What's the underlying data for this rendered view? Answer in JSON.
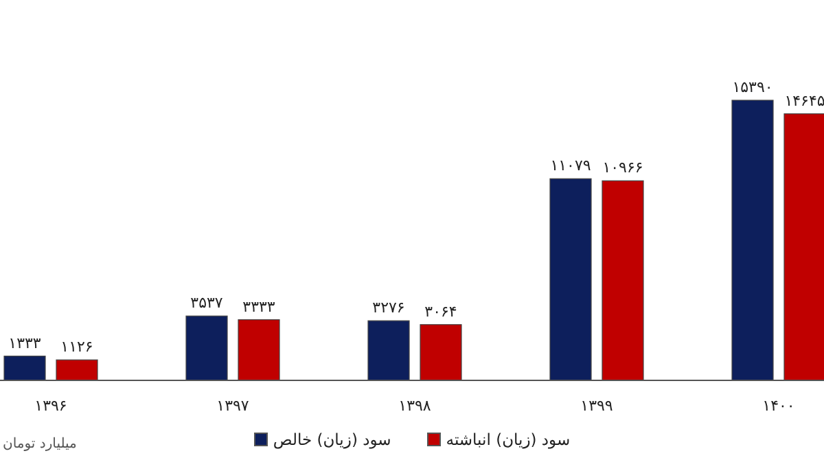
{
  "chart_data": {
    "type": "bar",
    "categories": [
      "۱۳۹۶",
      "۱۳۹۷",
      "۱۳۹۸",
      "۱۳۹۹",
      "۱۴۰۰"
    ],
    "series": [
      {
        "name": "سود (زیان) خالص",
        "color": "#0d1f5c",
        "values": [
          1333,
          3537,
          3276,
          11079,
          15390
        ],
        "value_labels": [
          "۱۳۳۳",
          "۳۵۳۷",
          "۳۲۷۶",
          "۱۱۰۷۹",
          "۱۵۳۹۰"
        ]
      },
      {
        "name": "سود (زیان) انباشته",
        "color": "#c00000",
        "values": [
          1126,
          3333,
          3064,
          10966,
          14645
        ],
        "value_labels": [
          "۱۱۲۶",
          "۳۳۳۳",
          "۳۰۶۴",
          "۱۰۹۶۶",
          "۱۴۶۴۵"
        ]
      }
    ],
    "tick_labels": "x",
    "legend": "bottom",
    "annotations": [
      "میلیارد تومان"
    ]
  }
}
